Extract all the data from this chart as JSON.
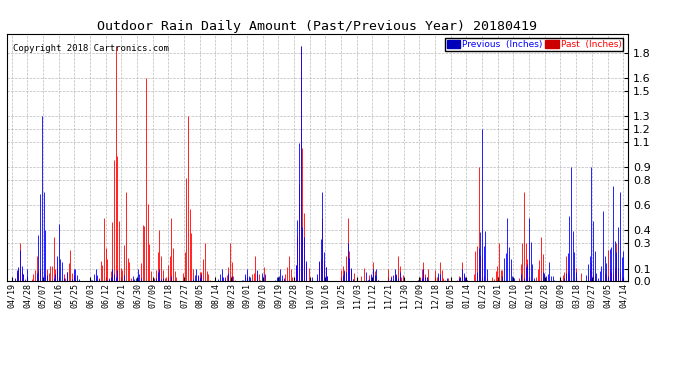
{
  "title": "Outdoor Rain Daily Amount (Past/Previous Year) 20180419",
  "copyright": "Copyright 2018 Cartronics.com",
  "legend_prev_label": "Previous  (Inches)",
  "legend_past_label": "Past  (Inches)",
  "legend_prev_color": "#0000FF",
  "legend_past_color": "#FF0000",
  "legend_prev_bg": "#0000BB",
  "legend_past_bg": "#CC0000",
  "bg_color": "#ffffff",
  "plot_bg_color": "#ffffff",
  "grid_color": "#aaaaaa",
  "yticks": [
    0.0,
    0.1,
    0.3,
    0.4,
    0.6,
    0.8,
    0.9,
    1.1,
    1.2,
    1.3,
    1.5,
    1.6,
    1.8
  ],
  "ylim": [
    0.0,
    1.95
  ],
  "x_labels": [
    "04/19",
    "04/28",
    "05/07",
    "05/16",
    "05/25",
    "06/03",
    "06/12",
    "06/21",
    "06/30",
    "07/09",
    "07/18",
    "07/27",
    "08/05",
    "08/14",
    "08/23",
    "09/01",
    "09/10",
    "09/19",
    "09/28",
    "10/07",
    "10/16",
    "10/25",
    "11/03",
    "11/12",
    "11/21",
    "11/30",
    "12/09",
    "12/18",
    "01/05",
    "01/14",
    "01/23",
    "02/01",
    "02/10",
    "02/19",
    "02/28",
    "03/09",
    "03/18",
    "03/27",
    "04/05",
    "04/14"
  ],
  "num_days": 365,
  "seed_past": 77,
  "seed_prev": 42
}
